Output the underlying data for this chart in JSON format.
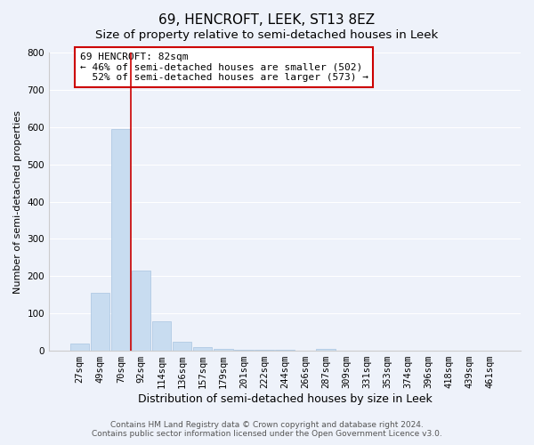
{
  "title": "69, HENCROFT, LEEK, ST13 8EZ",
  "subtitle": "Size of property relative to semi-detached houses in Leek",
  "xlabel": "Distribution of semi-detached houses by size in Leek",
  "ylabel": "Number of semi-detached properties",
  "categories": [
    "27sqm",
    "49sqm",
    "70sqm",
    "92sqm",
    "114sqm",
    "136sqm",
    "157sqm",
    "179sqm",
    "201sqm",
    "222sqm",
    "244sqm",
    "266sqm",
    "287sqm",
    "309sqm",
    "331sqm",
    "353sqm",
    "374sqm",
    "396sqm",
    "418sqm",
    "439sqm",
    "461sqm"
  ],
  "values": [
    20,
    155,
    595,
    215,
    78,
    25,
    10,
    5,
    3,
    2,
    2,
    0,
    5,
    0,
    0,
    0,
    0,
    0,
    0,
    0,
    0
  ],
  "bar_color": "#c8dcf0",
  "bar_edge_color": "#a8c4e0",
  "vline_x": 2.5,
  "vline_color": "#cc0000",
  "annotation_text": "69 HENCROFT: 82sqm\n← 46% of semi-detached houses are smaller (502)\n  52% of semi-detached houses are larger (573) →",
  "box_color": "#ffffff",
  "box_edge_color": "#cc0000",
  "ylim": [
    0,
    800
  ],
  "yticks": [
    0,
    100,
    200,
    300,
    400,
    500,
    600,
    700,
    800
  ],
  "footer": "Contains HM Land Registry data © Crown copyright and database right 2024.\nContains public sector information licensed under the Open Government Licence v3.0.",
  "title_fontsize": 11,
  "subtitle_fontsize": 9.5,
  "xlabel_fontsize": 9,
  "ylabel_fontsize": 8,
  "tick_fontsize": 7.5,
  "annotation_fontsize": 8,
  "footer_fontsize": 6.5,
  "bg_color": "#eef2fa"
}
